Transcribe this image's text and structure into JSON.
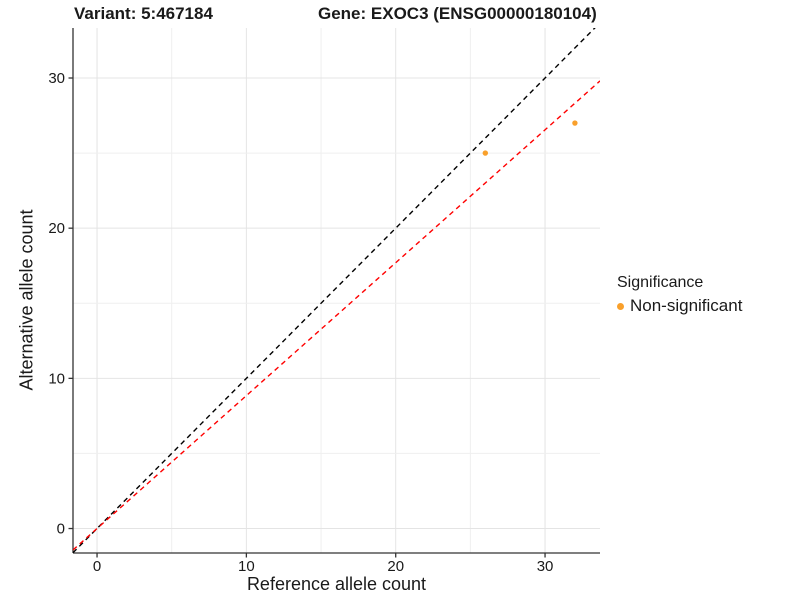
{
  "title": {
    "variant": "Variant: 5:467184",
    "gene": "Gene: EXOC3 (ENSG00000180104)"
  },
  "chart_data": {
    "type": "scatter",
    "xlabel": "Reference allele count",
    "ylabel": "Alternative allele count",
    "xlim": [
      -1.61,
      33.68
    ],
    "ylim": [
      -1.63,
      33.33
    ],
    "x_ticks": [
      0,
      10,
      20,
      30
    ],
    "y_ticks": [
      0,
      10,
      20,
      30
    ],
    "x_gridlines": [
      0,
      5,
      10,
      15,
      20,
      25,
      30
    ],
    "y_gridlines": [
      0,
      5,
      10,
      15,
      20,
      25,
      30
    ],
    "grid": "on",
    "points": [
      {
        "x": 26,
        "y": 25,
        "series": "Non-significant"
      },
      {
        "x": 32,
        "y": 27,
        "series": "Non-significant"
      }
    ],
    "lines": [
      {
        "name": "identity-line",
        "slope": 1,
        "intercept": 0,
        "color": "#000000",
        "style": "dashed"
      },
      {
        "name": "ratio-line",
        "slope": 0.885,
        "intercept": 0,
        "color": "#ff0000",
        "style": "dashed"
      }
    ],
    "legend": {
      "title": "Significance",
      "position": "right",
      "entries": [
        {
          "label": "Non-significant",
          "color": "#F9A02B"
        }
      ]
    }
  },
  "colors": {
    "point_orange": "#F9A02B",
    "line_red": "#ff0000",
    "line_black": "#000000",
    "axis": "#333333",
    "tick_text": "#1a1a1a",
    "grid_major": "#e4e4e4",
    "grid_minor": "#efefef",
    "background": "#ffffff"
  }
}
